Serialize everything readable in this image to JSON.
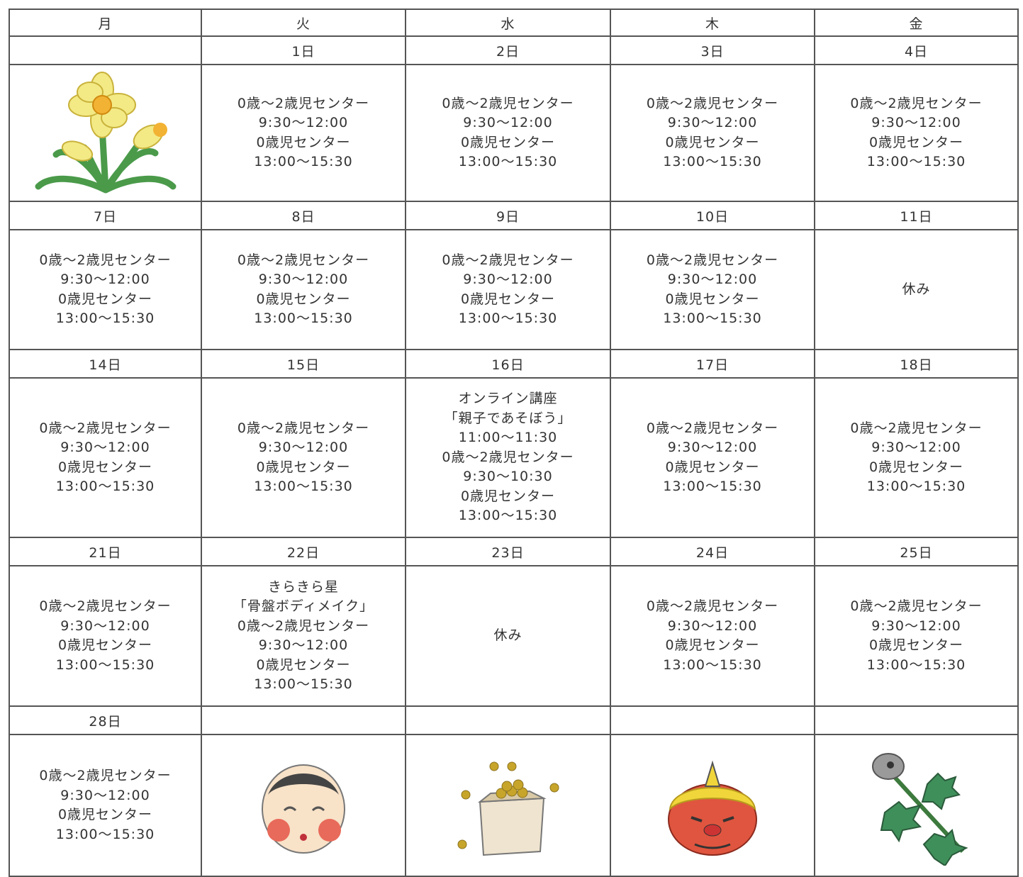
{
  "table": {
    "header": [
      "月",
      "火",
      "水",
      "木",
      "金"
    ],
    "weeks": [
      [
        {},
        {
          "date": "1日",
          "lines": [
            "0歳～2歳児センター",
            "9:30～12:00",
            "0歳児センター",
            "13:00～15:30"
          ]
        },
        {
          "date": "2日",
          "lines": [
            "0歳～2歳児センター",
            "9:30～12:00",
            "0歳児センター",
            "13:00～15:30"
          ]
        },
        {
          "date": "3日",
          "lines": [
            "0歳～2歳児センター",
            "9:30～12:00",
            "0歳児センター",
            "13:00～15:30"
          ]
        },
        {
          "date": "4日",
          "lines": [
            "0歳～2歳児センター",
            "9:30～12:00",
            "0歳児センター",
            "13:00～15:30"
          ]
        }
      ],
      [
        {
          "date": "7日",
          "lines": [
            "0歳～2歳児センター",
            "9:30～12:00",
            "0歳児センター",
            "13:00～15:30"
          ]
        },
        {
          "date": "8日",
          "lines": [
            "0歳～2歳児センター",
            "9:30～12:00",
            "0歳児センター",
            "13:00～15:30"
          ]
        },
        {
          "date": "9日",
          "lines": [
            "0歳～2歳児センター",
            "9:30～12:00",
            "0歳児センター",
            "13:00～15:30"
          ]
        },
        {
          "date": "10日",
          "lines": [
            "0歳～2歳児センター",
            "9:30～12:00",
            "0歳児センター",
            "13:00～15:30"
          ]
        },
        {
          "date": "11日",
          "lines": [
            "休み"
          ]
        }
      ],
      [
        {
          "date": "14日",
          "lines": [
            "0歳～2歳児センター",
            "9:30～12:00",
            "0歳児センター",
            "13:00～15:30"
          ]
        },
        {
          "date": "15日",
          "lines": [
            "0歳～2歳児センター",
            "9:30～12:00",
            "0歳児センター",
            "13:00～15:30"
          ]
        },
        {
          "date": "16日",
          "lines": [
            "オンライン講座",
            "「親子であそぼう」",
            "11:00～11:30",
            "0歳～2歳児センター",
            "9:30～10:30",
            "0歳児センター",
            "13:00～15:30"
          ]
        },
        {
          "date": "17日",
          "lines": [
            "0歳～2歳児センター",
            "9:30～12:00",
            "0歳児センター",
            "13:00～15:30"
          ]
        },
        {
          "date": "18日",
          "lines": [
            "0歳～2歳児センター",
            "9:30～12:00",
            "0歳児センター",
            "13:00～15:30"
          ]
        }
      ],
      [
        {
          "date": "21日",
          "lines": [
            "0歳～2歳児センター",
            "9:30～12:00",
            "0歳児センター",
            "13:00～15:30"
          ]
        },
        {
          "date": "22日",
          "lines": [
            "きらきら星",
            "「骨盤ボディメイク」",
            "0歳～2歳児センター",
            "9:30～12:00",
            "0歳児センター",
            "13:00～15:30"
          ]
        },
        {
          "date": "23日",
          "lines": [
            "休み"
          ]
        },
        {
          "date": "24日",
          "lines": [
            "0歳～2歳児センター",
            "9:30～12:00",
            "0歳児センター",
            "13:00～15:30"
          ]
        },
        {
          "date": "25日",
          "lines": [
            "0歳～2歳児センター",
            "9:30～12:00",
            "0歳児センター",
            "13:00～15:30"
          ]
        }
      ],
      [
        {
          "date": "28日",
          "lines": [
            "0歳～2歳児センター",
            "9:30～12:00",
            "0歳児センター",
            "13:00～15:30"
          ]
        },
        {},
        {},
        {},
        {}
      ]
    ]
  }
}
